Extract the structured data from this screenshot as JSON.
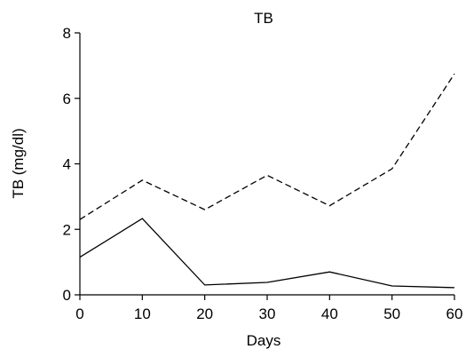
{
  "chart_data": {
    "type": "line",
    "title": "TB",
    "xlabel": "Days",
    "ylabel": "TB (mg/dl)",
    "xlim": [
      0,
      60
    ],
    "ylim": [
      0,
      8
    ],
    "x": [
      0,
      10,
      20,
      30,
      40,
      50,
      60
    ],
    "xticks": [
      "0",
      "10",
      "20",
      "30",
      "40",
      "50",
      "60"
    ],
    "yticks": [
      "0",
      "2",
      "4",
      "6",
      "8"
    ],
    "grid": false,
    "legend": "none",
    "series": [
      {
        "style": "dashed",
        "color": "#000000",
        "values": [
          2.3,
          3.5,
          2.6,
          3.65,
          2.72,
          3.85,
          6.75
        ]
      },
      {
        "style": "solid",
        "color": "#000000",
        "values": [
          1.15,
          2.33,
          0.3,
          0.38,
          0.7,
          0.27,
          0.22
        ]
      }
    ]
  }
}
